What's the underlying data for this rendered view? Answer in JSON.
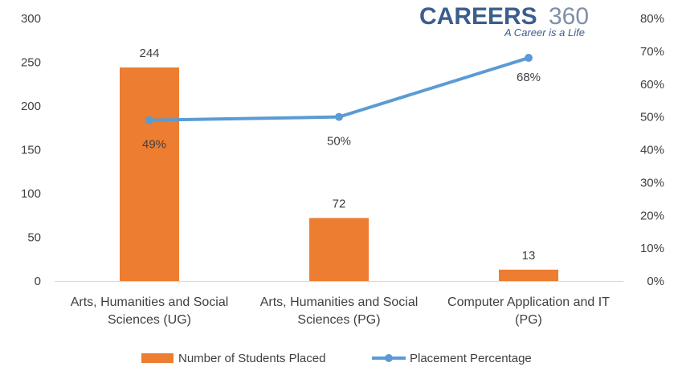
{
  "brand": {
    "name_main": "CAREERS",
    "name_num": "360",
    "tagline": "A Career is a Life"
  },
  "colors": {
    "bar": "#ED7D31",
    "line": "#5B9BD5",
    "axis": "#D9D9D9",
    "text": "#404040",
    "brand": "#3B5E8C"
  },
  "chart_data": {
    "type": "bar",
    "categories": [
      [
        "Arts, Humanities and Social",
        "Sciences (UG)"
      ],
      [
        "Arts, Humanities and Social",
        "Sciences (PG)"
      ],
      [
        "Computer Application and IT",
        "(PG)"
      ]
    ],
    "series": [
      {
        "name": "Number of Students Placed",
        "type": "bar",
        "axis": "left",
        "values": [
          244,
          72,
          13
        ],
        "labels": [
          "244",
          "72",
          "13"
        ]
      },
      {
        "name": "Placement Percentage",
        "type": "line",
        "axis": "right",
        "values": [
          49,
          50,
          68
        ],
        "labels": [
          "49%",
          "50%",
          "68%"
        ]
      }
    ],
    "y_left": {
      "range": [
        0,
        300
      ],
      "ticks": [
        0,
        50,
        100,
        150,
        200,
        250,
        300
      ],
      "tick_labels": [
        "0",
        "50",
        "100",
        "150",
        "200",
        "250",
        "300"
      ]
    },
    "y_right": {
      "range": [
        0,
        80
      ],
      "ticks": [
        0,
        10,
        20,
        30,
        40,
        50,
        60,
        70,
        80
      ],
      "tick_labels": [
        "0%",
        "10%",
        "20%",
        "30%",
        "40%",
        "50%",
        "60%",
        "70%",
        "80%"
      ]
    },
    "grid": false,
    "legend_position": "bottom"
  }
}
